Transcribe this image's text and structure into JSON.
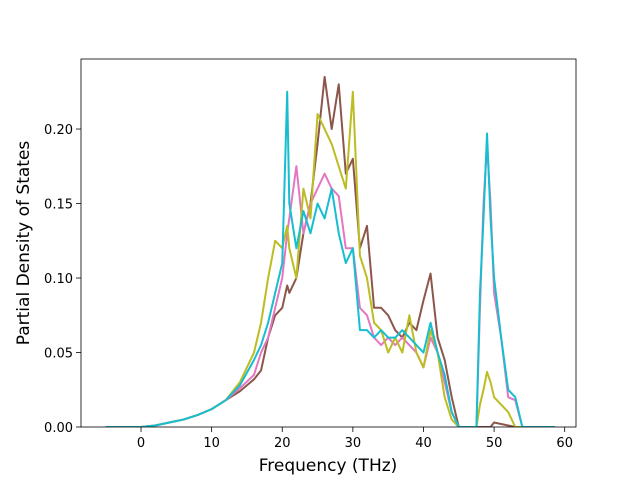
{
  "chart_data": {
    "type": "line",
    "xlabel": "Frequency (THz)",
    "ylabel": "Partial Density of States",
    "x": [
      -5,
      0,
      2,
      4,
      6,
      8,
      10,
      12,
      14,
      16,
      17,
      18,
      19,
      20,
      20.7,
      21,
      22,
      23,
      24,
      25,
      26,
      27,
      28,
      29,
      30,
      31,
      32,
      33,
      34,
      35,
      36,
      37,
      38,
      39,
      40,
      41,
      42,
      43,
      44,
      45,
      47.5,
      48,
      48.5,
      49,
      49.5,
      50,
      51,
      52,
      53,
      54,
      58.6
    ],
    "series": [
      {
        "color": "#8c564b",
        "values": [
          0,
          0,
          0.001,
          0.003,
          0.005,
          0.008,
          0.012,
          0.018,
          0.024,
          0.032,
          0.038,
          0.06,
          0.075,
          0.08,
          0.095,
          0.09,
          0.1,
          0.13,
          0.15,
          0.19,
          0.235,
          0.2,
          0.23,
          0.17,
          0.18,
          0.12,
          0.135,
          0.08,
          0.08,
          0.075,
          0.065,
          0.06,
          0.07,
          0.065,
          0.085,
          0.103,
          0.06,
          0.045,
          0.02,
          0,
          0,
          0,
          0,
          0,
          0,
          0.003,
          0.002,
          0.001,
          0,
          0,
          0
        ]
      },
      {
        "color": "#e377c2",
        "values": [
          0,
          0,
          0.001,
          0.003,
          0.005,
          0.008,
          0.012,
          0.018,
          0.026,
          0.035,
          0.05,
          0.06,
          0.08,
          0.1,
          0.13,
          0.14,
          0.175,
          0.13,
          0.15,
          0.16,
          0.17,
          0.16,
          0.155,
          0.12,
          0.12,
          0.08,
          0.075,
          0.06,
          0.055,
          0.06,
          0.055,
          0.06,
          0.055,
          0.05,
          0.04,
          0.06,
          0.05,
          0.03,
          0.01,
          0,
          0,
          0.08,
          0.15,
          0.19,
          0.15,
          0.09,
          0.06,
          0.02,
          0.018,
          0,
          0
        ]
      },
      {
        "color": "#bcbd22",
        "values": [
          0,
          0,
          0.001,
          0.003,
          0.005,
          0.008,
          0.012,
          0.018,
          0.03,
          0.05,
          0.07,
          0.1,
          0.125,
          0.12,
          0.135,
          0.12,
          0.1,
          0.16,
          0.14,
          0.21,
          0.2,
          0.19,
          0.175,
          0.16,
          0.225,
          0.115,
          0.1,
          0.07,
          0.065,
          0.05,
          0.06,
          0.05,
          0.075,
          0.05,
          0.04,
          0.065,
          0.05,
          0.02,
          0.005,
          0,
          0,
          0.015,
          0.025,
          0.037,
          0.03,
          0.02,
          0.015,
          0.01,
          0,
          0,
          0
        ]
      },
      {
        "color": "#17becf",
        "values": [
          0,
          0,
          0.001,
          0.003,
          0.005,
          0.008,
          0.012,
          0.018,
          0.028,
          0.045,
          0.055,
          0.07,
          0.09,
          0.11,
          0.225,
          0.15,
          0.12,
          0.145,
          0.13,
          0.15,
          0.14,
          0.16,
          0.13,
          0.11,
          0.12,
          0.065,
          0.065,
          0.06,
          0.065,
          0.06,
          0.06,
          0.065,
          0.06,
          0.055,
          0.05,
          0.07,
          0.05,
          0.035,
          0.01,
          0,
          0,
          0.09,
          0.14,
          0.197,
          0.14,
          0.1,
          0.06,
          0.025,
          0.02,
          0,
          0
        ]
      }
    ],
    "xlim": [
      -8.5,
      61.6
    ],
    "ylim": [
      0,
      0.247
    ],
    "xticks": [
      0,
      10,
      20,
      30,
      40,
      50,
      60
    ],
    "yticks": [
      {
        "value": 0,
        "label": "0.00"
      },
      {
        "value": 0.05,
        "label": "0.05"
      },
      {
        "value": 0.1,
        "label": "0.10"
      },
      {
        "value": 0.15,
        "label": "0.15"
      },
      {
        "value": 0.2,
        "label": "0.20"
      }
    ]
  }
}
